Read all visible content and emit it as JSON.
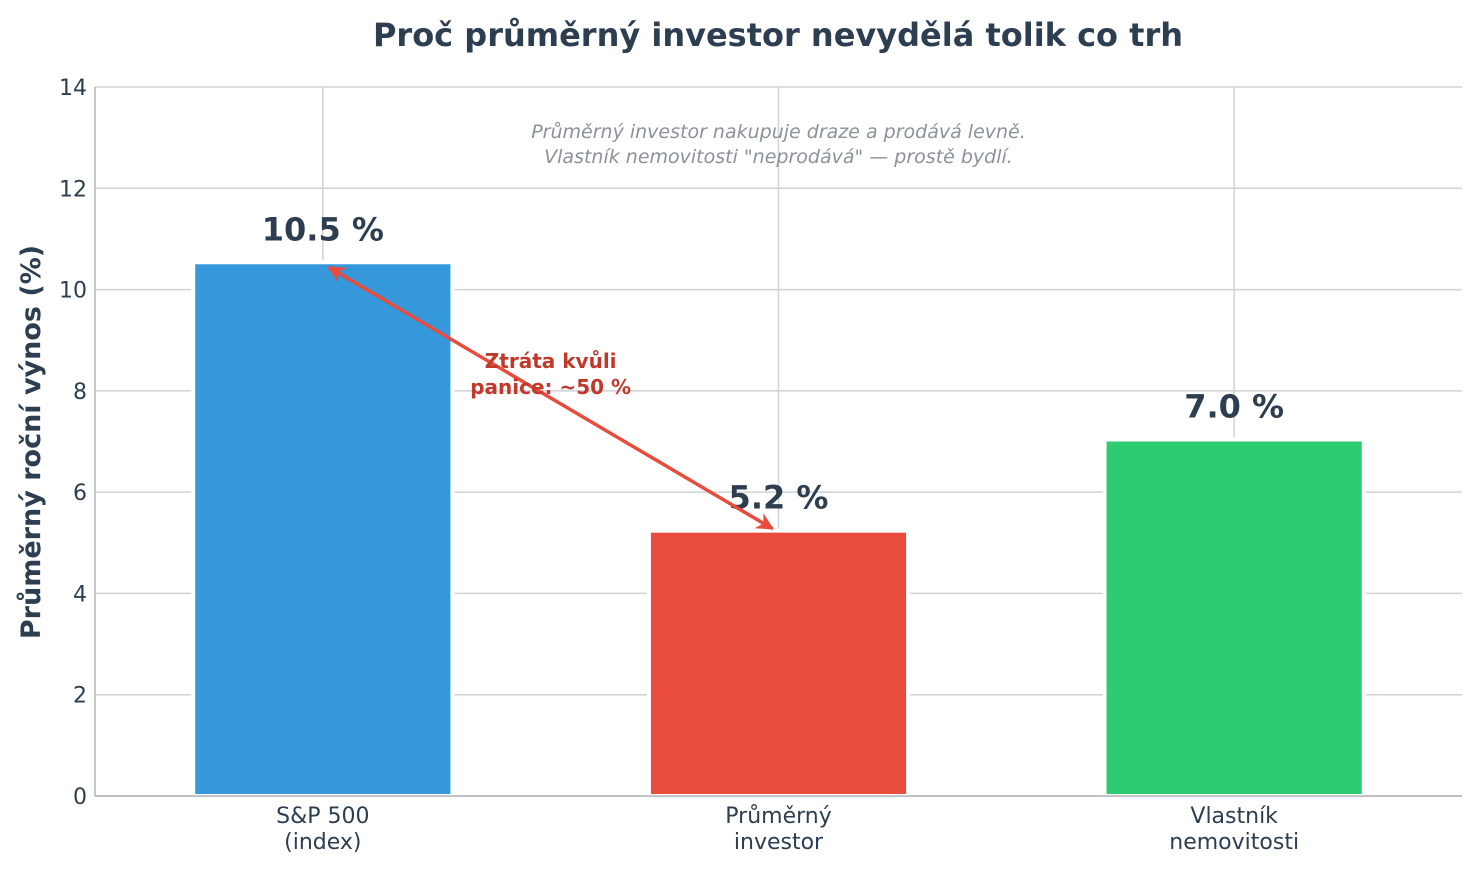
{
  "chart_data": {
    "type": "bar",
    "title": "Proč průměrný investor nevydělá tolik co trh",
    "xlabel": "",
    "ylabel": "Průměrný roční výnos (%)",
    "ylim": [
      0,
      14
    ],
    "yticks": [
      0,
      2,
      4,
      6,
      8,
      10,
      12,
      14
    ],
    "grid": true,
    "categories": [
      [
        "S&P 500",
        "(index)"
      ],
      [
        "Průměrný",
        "investor"
      ],
      [
        "Vlastník",
        "nemovitosti"
      ]
    ],
    "values": [
      10.5,
      5.2,
      7.0
    ],
    "value_labels": [
      "10.5 %",
      "5.2 %",
      "7.0 %"
    ],
    "colors": [
      "#3498db",
      "#e74c3c",
      "#2ecc71"
    ],
    "note": [
      "Průměrný investor nakupuje draze a prodává levně.",
      "Vlastník nemovitosti \"neprodává\" — prostě bydlí."
    ],
    "annotation": {
      "lines": [
        "Ztráta kvůli",
        "panice: ~50 %"
      ],
      "color": "#e74c3c",
      "from_category": 0,
      "to_category": 1
    }
  }
}
